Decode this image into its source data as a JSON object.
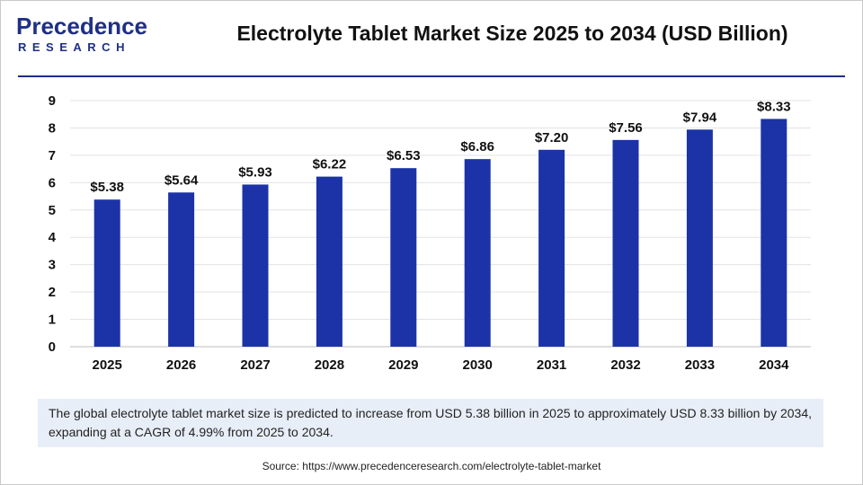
{
  "logo": {
    "main": "Precedence",
    "sub": "RESEARCH"
  },
  "header": {
    "title": "Electrolyte Tablet Market Size 2025 to 2034 (USD Billion)"
  },
  "note": "The global electrolyte tablet market size is predicted to increase from USD 5.38 billion in 2025 to approximately USD 8.33 billion by 2034, expanding at a CAGR of 4.99% from 2025 to 2034.",
  "source": "Source: https://www.precedenceresearch.com/electrolyte-tablet-market",
  "colors": {
    "bar": "#1b33a6",
    "brand": "#1f2f86",
    "note_bg": "#e8eef8"
  },
  "chart_data": {
    "type": "bar",
    "title": "Electrolyte Tablet Market Size 2025 to 2034 (USD Billion)",
    "categories": [
      "2025",
      "2026",
      "2027",
      "2028",
      "2029",
      "2030",
      "2031",
      "2032",
      "2033",
      "2034"
    ],
    "values": [
      5.38,
      5.64,
      5.93,
      6.22,
      6.53,
      6.86,
      7.2,
      7.56,
      7.94,
      8.33
    ],
    "value_labels": [
      "$5.38",
      "$5.64",
      "$5.93",
      "$6.22",
      "$6.53",
      "$6.86",
      "$7.20",
      "$7.56",
      "$7.94",
      "$8.33"
    ],
    "y_ticks": [
      0,
      1,
      2,
      3,
      4,
      5,
      6,
      7,
      8,
      9
    ],
    "ylim": [
      0,
      9
    ],
    "xlabel": "",
    "ylabel": "",
    "grid": true,
    "legend": "none"
  }
}
